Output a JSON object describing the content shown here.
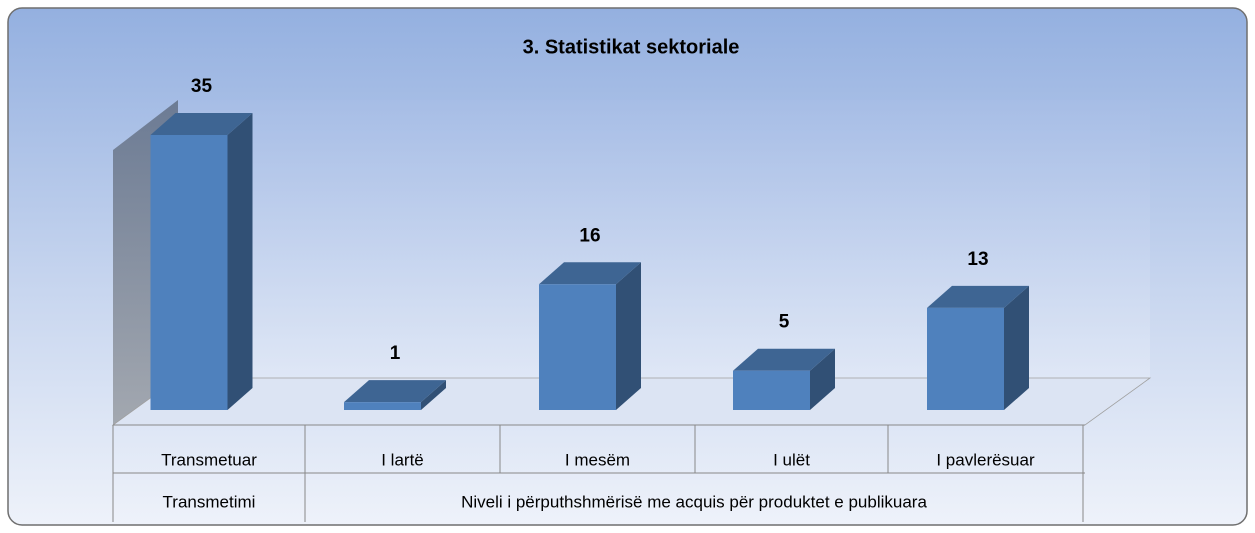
{
  "chart_data": {
    "type": "bar3d",
    "title": "3. Statistikat sektoriale",
    "categories": [
      "Transmetuar",
      "I lartë",
      "I mesëm",
      "I ulët",
      "I pavlerësuar"
    ],
    "values": [
      35,
      1,
      16,
      5,
      13
    ],
    "groups": [
      "Transmetimi",
      "Niveli i përputhshmërisë me acquis për produktet e publikuara"
    ],
    "color": "#4f81bd"
  }
}
